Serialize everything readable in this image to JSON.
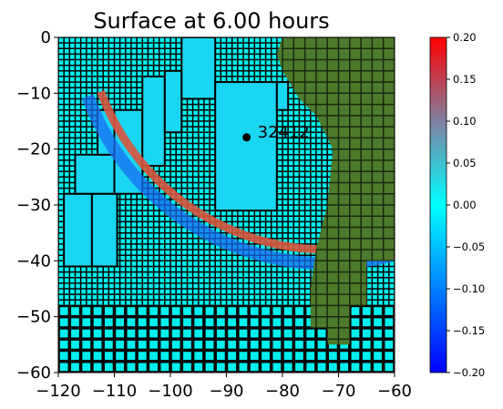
{
  "chart_data": {
    "type": "heatmap",
    "title": "Surface at 6.00 hours",
    "xlim": [
      -120,
      -60
    ],
    "ylim": [
      -60,
      0
    ],
    "x_ticks": [
      -120,
      -110,
      -100,
      -90,
      -80,
      -70,
      -60
    ],
    "y_ticks": [
      0,
      -10,
      -20,
      -30,
      -40,
      -50,
      -60
    ],
    "x_tick_labels": [
      "−120",
      "−110",
      "−100",
      "−90",
      "−80",
      "−70",
      "−60"
    ],
    "y_tick_labels": [
      "0",
      "−10",
      "−20",
      "−30",
      "−40",
      "−50",
      "−60"
    ],
    "xlabel": "",
    "ylabel": "",
    "colorbar": {
      "range": [
        -0.2,
        0.2
      ],
      "ticks": [
        0.2,
        0.15,
        0.1,
        0.05,
        0.0,
        -0.05,
        -0.1,
        -0.15,
        -0.2
      ],
      "tick_labels": [
        "0.20",
        "0.15",
        "0.10",
        "0.05",
        "0.00",
        "−0.05",
        "−0.10",
        "−0.15",
        "−0.20"
      ],
      "colors": [
        "#0000ff",
        "#00ffff",
        "#ff0000"
      ]
    },
    "land_color": "#4d7a2b",
    "ocean_background_color": "#00f0f0",
    "wave_front": {
      "center": [
        -72,
        5
      ],
      "radius": 43,
      "amplitude_peak": 0.1
    },
    "gauge": {
      "label": "32412",
      "x": -86.4,
      "y": -17.9
    },
    "refinement_patches": [
      {
        "x0": -119,
        "x1": -114,
        "y0": -41,
        "y1": -28
      },
      {
        "x0": -114,
        "x1": -109.5,
        "y0": -41,
        "y1": -28
      },
      {
        "x0": -117,
        "x1": -110,
        "y0": -28,
        "y1": -21
      },
      {
        "x0": -110,
        "x1": -105,
        "y0": -28,
        "y1": -13
      },
      {
        "x0": -113,
        "x1": -110,
        "y0": -21,
        "y1": -13
      },
      {
        "x0": -105,
        "x1": -101,
        "y0": -23,
        "y1": -7
      },
      {
        "x0": -101,
        "x1": -98,
        "y0": -17,
        "y1": -6
      },
      {
        "x0": -98,
        "x1": -92,
        "y0": -11,
        "y1": 0
      },
      {
        "x0": -92,
        "x1": -81,
        "y0": -31,
        "y1": -8
      },
      {
        "x0": -81,
        "x1": -79,
        "y0": -13,
        "y1": -8
      }
    ]
  }
}
